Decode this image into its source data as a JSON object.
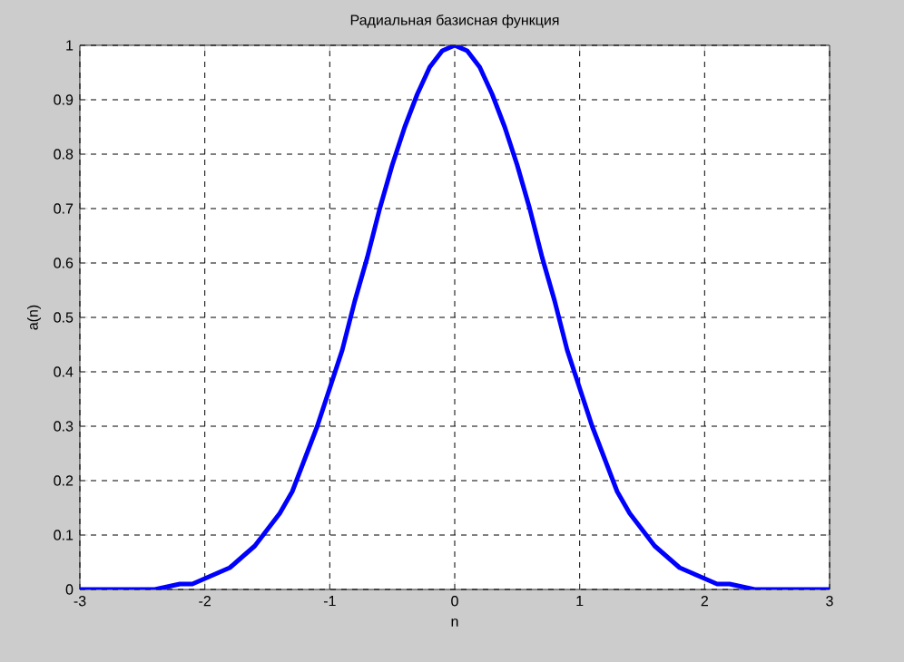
{
  "chart_data": {
    "type": "line",
    "title": "Радиальная базисная функция",
    "xlabel": "n",
    "ylabel": "a(n)",
    "x": [
      -3,
      -2.8,
      -2.6,
      -2.4,
      -2.2,
      -2.1,
      -2,
      -1.9,
      -1.8,
      -1.7,
      -1.6,
      -1.5,
      -1.4,
      -1.3,
      -1.2,
      -1.1,
      -1,
      -0.9,
      -0.8,
      -0.7,
      -0.6,
      -0.5,
      -0.4,
      -0.3,
      -0.2,
      -0.1,
      0,
      0.1,
      0.2,
      0.3,
      0.4,
      0.5,
      0.6,
      0.7,
      0.8,
      0.9,
      1,
      1.1,
      1.2,
      1.3,
      1.4,
      1.5,
      1.6,
      1.7,
      1.8,
      1.9,
      2,
      2.1,
      2.2,
      2.4,
      2.6,
      2.8,
      3
    ],
    "series": [
      {
        "color": "#0000ff",
        "values": [
          0,
          0,
          0,
          0,
          0.01,
          0.01,
          0.02,
          0.03,
          0.04,
          0.06,
          0.08,
          0.11,
          0.14,
          0.18,
          0.24,
          0.3,
          0.37,
          0.44,
          0.53,
          0.61,
          0.7,
          0.78,
          0.85,
          0.91,
          0.96,
          0.99,
          1,
          0.99,
          0.96,
          0.91,
          0.85,
          0.78,
          0.7,
          0.61,
          0.53,
          0.44,
          0.37,
          0.3,
          0.24,
          0.18,
          0.14,
          0.11,
          0.08,
          0.06,
          0.04,
          0.03,
          0.02,
          0.01,
          0.01,
          0,
          0,
          0,
          0
        ]
      }
    ],
    "xlim": [
      -3,
      3
    ],
    "ylim": [
      0,
      1
    ],
    "xticks": [
      -3,
      -2,
      -1,
      0,
      1,
      2,
      3
    ],
    "yticks": [
      0,
      0.1,
      0.2,
      0.3,
      0.4,
      0.5,
      0.6,
      0.7,
      0.8,
      0.9,
      1
    ],
    "grid": true,
    "line_style": "solid",
    "marker": "none"
  }
}
